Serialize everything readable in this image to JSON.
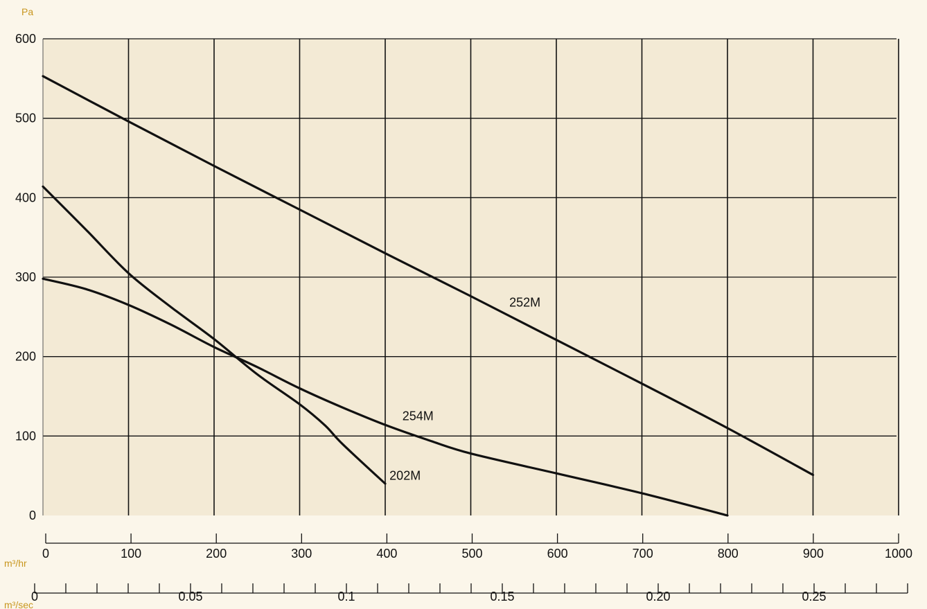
{
  "chart_data": {
    "type": "line",
    "title": "",
    "ylabel": "Pa",
    "ylim": [
      0,
      600
    ],
    "yticks": [
      0,
      100,
      200,
      300,
      400,
      500,
      600
    ],
    "xlim": [
      0,
      1000
    ],
    "grid": true,
    "x_axes": [
      {
        "unit": "m³/hr",
        "ticks": [
          0,
          100,
          200,
          300,
          400,
          500,
          600,
          700,
          800,
          900,
          1000
        ],
        "tick_labels": [
          "0",
          "100",
          "200",
          "300",
          "400",
          "500",
          "600",
          "700",
          "800",
          "900",
          "1000"
        ]
      },
      {
        "unit": "m³/sec",
        "range": [
          0,
          0.28
        ],
        "minor_step": 0.01,
        "labeled_ticks": [
          0,
          0.05,
          0.1,
          0.15,
          0.2,
          0.25
        ],
        "tick_labels": [
          "0",
          "0.05",
          "0.1",
          "0.15",
          "0.20",
          "0.25"
        ]
      }
    ],
    "series": [
      {
        "name": "252M",
        "x": [
          0,
          100,
          200,
          300,
          400,
          500,
          600,
          700,
          800,
          900
        ],
        "y": [
          553,
          496,
          440,
          385,
          330,
          276,
          221,
          166,
          110,
          51
        ]
      },
      {
        "name": "254M",
        "x": [
          0,
          50,
          100,
          150,
          200,
          250,
          300,
          350,
          400,
          450,
          500,
          600,
          700,
          800
        ],
        "y": [
          298,
          285,
          265,
          240,
          212,
          187,
          160,
          136,
          114,
          95,
          78,
          53,
          28,
          0
        ]
      },
      {
        "name": "202M",
        "x": [
          0,
          50,
          100,
          150,
          200,
          250,
          300,
          330,
          350,
          400
        ],
        "y": [
          414,
          360,
          305,
          262,
          222,
          178,
          140,
          113,
          90,
          40
        ]
      }
    ],
    "series_label_positions": [
      {
        "name": "252M",
        "x": 545,
        "y": 268
      },
      {
        "name": "254M",
        "x": 420,
        "y": 125
      },
      {
        "name": "202M",
        "x": 405,
        "y": 50
      }
    ],
    "colors": {
      "background": "#fbf6ea",
      "plot_area": "#f3ead5",
      "line": "#111111",
      "grid": "#111111",
      "unit_label": "#c8961e"
    }
  }
}
